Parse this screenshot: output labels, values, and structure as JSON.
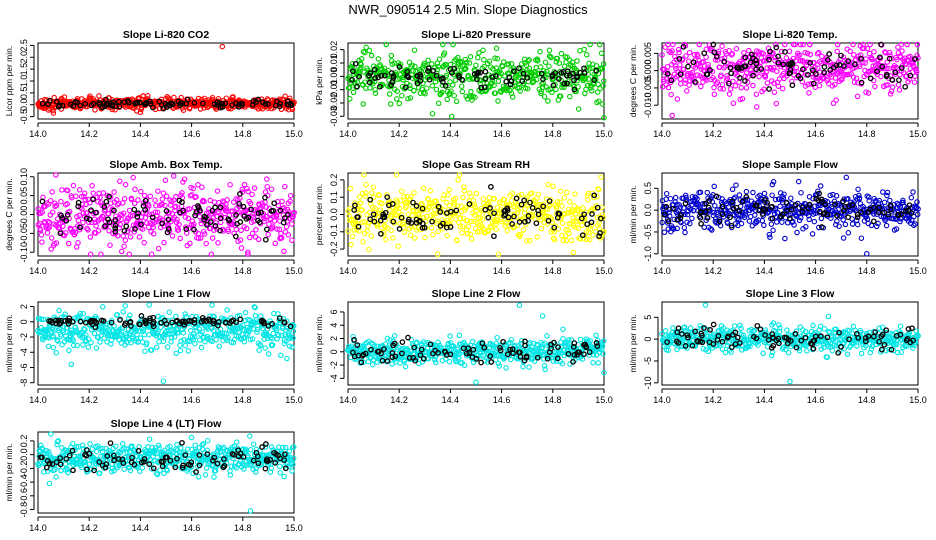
{
  "title": "NWR_090514  2.5 Min. Slope Diagnostics",
  "chart_data": [
    {
      "type": "scatter",
      "title": "Slope Li-820 CO2",
      "ylabel": "Licor ppm per min.",
      "color": "#ff0000",
      "xlim": [
        14.0,
        15.0
      ],
      "ylim": [
        -0.6,
        2.6
      ],
      "x_ticks": [
        "14.0",
        "14.2",
        "14.4",
        "14.6",
        "14.8",
        "15.0"
      ],
      "y_ticks": [
        "-0.5",
        "0.0",
        "0.5",
        "1.0",
        "1.5",
        "2.0",
        "2.5"
      ],
      "center": 0.05,
      "spread": 0.12,
      "black_spread": 0.08,
      "outliers": [
        [
          14.72,
          2.45
        ],
        [
          14.06,
          -0.35
        ],
        [
          14.4,
          -0.32
        ]
      ]
    },
    {
      "type": "scatter",
      "title": "Slope Li-820 Pressure",
      "ylabel": "kPa per min.",
      "color": "#00cc00",
      "xlim": [
        14.0,
        15.0
      ],
      "ylim": [
        -0.032,
        0.025
      ],
      "x_ticks": [
        "14.0",
        "14.2",
        "14.4",
        "14.6",
        "14.8",
        "15.0"
      ],
      "y_ticks": [
        "-0.03",
        "-0.02",
        "-0.01",
        "0.00",
        "0.01",
        "0.02"
      ],
      "center": 0.0,
      "spread": 0.009,
      "black_spread": 0.004,
      "outliers": [
        [
          14.33,
          -0.028
        ],
        [
          15.0,
          -0.031
        ],
        [
          14.58,
          0.021
        ]
      ]
    },
    {
      "type": "scatter",
      "title": "Slope Li-820 Temp.",
      "ylabel": "degrees C per min.",
      "color": "#ff00ff",
      "xlim": [
        14.0,
        15.0
      ],
      "ylim": [
        -0.014,
        0.008
      ],
      "x_ticks": [
        "14.0",
        "14.2",
        "14.4",
        "14.6",
        "14.8",
        "15.0"
      ],
      "y_ticks": [
        "-0.010",
        "-0.005",
        "0.000",
        "0.005"
      ],
      "center": 0.0005,
      "spread": 0.004,
      "black_spread": 0.003,
      "outliers": [
        [
          14.04,
          -0.013
        ],
        [
          14.37,
          -0.0105
        ]
      ]
    },
    {
      "type": "scatter",
      "title": "Slope Amb. Box Temp.",
      "ylabel": "degrees C per min.",
      "color": "#ff00ff",
      "xlim": [
        14.0,
        15.0
      ],
      "ylim": [
        -0.11,
        0.11
      ],
      "x_ticks": [
        "14.0",
        "14.2",
        "14.4",
        "14.6",
        "14.8",
        "15.0"
      ],
      "y_ticks": [
        "-0.10",
        "-0.05",
        "0.00",
        "0.05",
        "0.10"
      ],
      "center": 0.0,
      "spread": 0.04,
      "black_spread": 0.03,
      "outliers": [
        [
          14.07,
          0.105
        ],
        [
          14.53,
          0.102
        ],
        [
          14.82,
          -0.105
        ]
      ]
    },
    {
      "type": "scatter",
      "title": "Slope Gas Stream RH",
      "ylabel": "percent per min.",
      "color": "#ffff00",
      "xlim": [
        14.0,
        15.0
      ],
      "ylim": [
        -0.24,
        0.24
      ],
      "x_ticks": [
        "14.0",
        "14.2",
        "14.4",
        "14.6",
        "14.8",
        "15.0"
      ],
      "y_ticks": [
        "-0.2",
        "-0.1",
        "0.0",
        "0.1",
        "0.2"
      ],
      "center": 0.0,
      "spread": 0.08,
      "black_spread": 0.07,
      "outliers": [
        [
          14.19,
          0.23
        ],
        [
          14.35,
          -0.23
        ],
        [
          14.88,
          -0.22
        ]
      ]
    },
    {
      "type": "scatter",
      "title": "Slope Sample Flow",
      "ylabel": "ml/min per min.",
      "color": "#0000cc",
      "xlim": [
        14.0,
        15.0
      ],
      "ylim": [
        -1.05,
        0.85
      ],
      "x_ticks": [
        "14.0",
        "14.2",
        "14.4",
        "14.6",
        "14.8",
        "15.0"
      ],
      "y_ticks": [
        "-1.0",
        "-0.5",
        "0.0",
        "0.5"
      ],
      "center": 0.0,
      "spread": 0.22,
      "black_spread": 0.15,
      "outliers": [
        [
          14.72,
          0.75
        ],
        [
          14.8,
          -1.0
        ],
        [
          14.48,
          -0.65
        ]
      ]
    },
    {
      "type": "scatter",
      "title": "Slope Line 1 Flow",
      "ylabel": "ml/min per min.",
      "color": "#00e5e5",
      "xlim": [
        14.0,
        15.0
      ],
      "ylim": [
        -8.3,
        2.6
      ],
      "x_ticks": [
        "14.0",
        "14.2",
        "14.4",
        "14.6",
        "14.8",
        "15.0"
      ],
      "y_ticks": [
        "-8",
        "-6",
        "-4",
        "-2",
        "0",
        "2"
      ],
      "center": -1.2,
      "spread": 1.2,
      "black_spread": 0.25,
      "black_center": 0.0,
      "outliers": [
        [
          14.49,
          -7.8
        ],
        [
          14.13,
          -5.6
        ],
        [
          14.68,
          2.2
        ]
      ]
    },
    {
      "type": "scatter",
      "title": "Slope Line 2 Flow",
      "ylabel": "ml/min per min.",
      "color": "#00e5e5",
      "xlim": [
        14.0,
        15.0
      ],
      "ylim": [
        -5.0,
        7.5
      ],
      "x_ticks": [
        "14.0",
        "14.2",
        "14.4",
        "14.6",
        "14.8",
        "15.0"
      ],
      "y_ticks": [
        "-4",
        "-2",
        "0",
        "2",
        "4",
        "6"
      ],
      "center": 0.0,
      "spread": 0.9,
      "black_spread": 0.9,
      "outliers": [
        [
          14.67,
          7.0
        ],
        [
          14.76,
          5.4
        ],
        [
          14.5,
          -4.6
        ],
        [
          14.84,
          3.4
        ]
      ]
    },
    {
      "type": "scatter",
      "title": "Slope Line 3 Flow",
      "ylabel": "ml/min per min.",
      "color": "#00e5e5",
      "xlim": [
        14.0,
        15.0
      ],
      "ylim": [
        -10.5,
        8.5
      ],
      "x_ticks": [
        "14.0",
        "14.2",
        "14.4",
        "14.6",
        "14.8",
        "15.0"
      ],
      "y_ticks": [
        "-10",
        "-5",
        "0",
        "5"
      ],
      "center": 0.0,
      "spread": 1.4,
      "black_spread": 1.2,
      "outliers": [
        [
          14.17,
          7.8
        ],
        [
          14.5,
          -9.7
        ],
        [
          14.65,
          5.2
        ]
      ]
    },
    {
      "type": "scatter",
      "title": "Slope Line 4 (LT) Flow",
      "ylabel": "ml/min per min.",
      "color": "#00e5e5",
      "xlim": [
        14.0,
        15.0
      ],
      "ylim": [
        -0.85,
        0.33
      ],
      "x_ticks": [
        "14.0",
        "14.2",
        "14.4",
        "14.6",
        "14.8",
        "15.0"
      ],
      "y_ticks": [
        "-0.8",
        "-0.6",
        "-0.4",
        "-0.2",
        "0.0",
        "0.2"
      ],
      "center": -0.05,
      "spread": 0.11,
      "black_spread": 0.09,
      "outliers": [
        [
          14.83,
          -0.82
        ],
        [
          14.05,
          0.3
        ],
        [
          14.6,
          0.25
        ]
      ]
    }
  ]
}
